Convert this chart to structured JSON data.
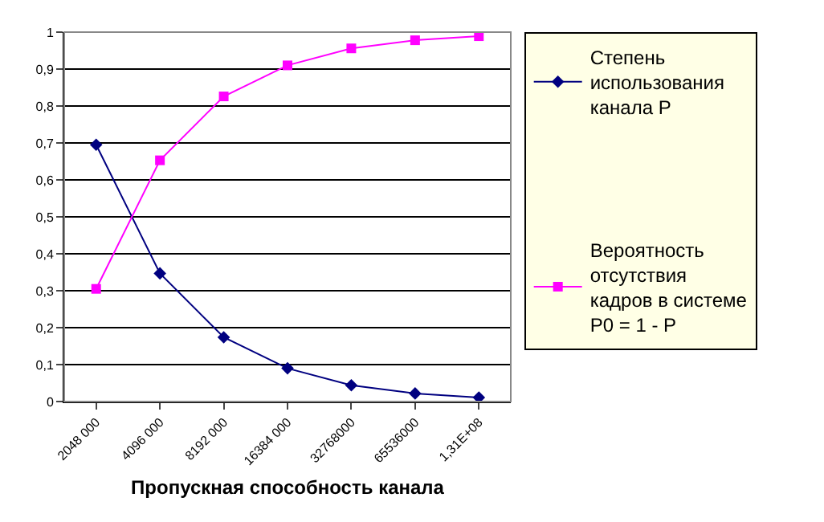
{
  "chart_data": {
    "type": "line",
    "xlabel": "Пропускная способность канала",
    "categories": [
      "2048 000",
      "4096 000",
      "8192 000",
      "16384 000",
      "32768000",
      "65536000",
      "1,31E+08"
    ],
    "series": [
      {
        "name": "Степень\nиспользования\nканала P",
        "color": "#000080",
        "marker": "diamond",
        "values": [
          0.695,
          0.347,
          0.174,
          0.09,
          0.044,
          0.022,
          0.011
        ]
      },
      {
        "name": "Вероятность\nотсутствия\nкадров в системе\nP0 = 1 - P",
        "color": "#ff00ff",
        "marker": "square",
        "values": [
          0.305,
          0.653,
          0.826,
          0.91,
          0.956,
          0.978,
          0.989
        ]
      }
    ],
    "ylim": [
      0,
      1
    ],
    "yticks": [
      {
        "value": 0,
        "label": "0"
      },
      {
        "value": 0.1,
        "label": "0,1"
      },
      {
        "value": 0.2,
        "label": "0,2"
      },
      {
        "value": 0.3,
        "label": "0,3"
      },
      {
        "value": 0.4,
        "label": "0,4"
      },
      {
        "value": 0.5,
        "label": "0,5"
      },
      {
        "value": 0.6,
        "label": "0,6"
      },
      {
        "value": 0.7,
        "label": "0,7"
      },
      {
        "value": 0.8,
        "label": "0,8"
      },
      {
        "value": 0.9,
        "label": "0,9"
      },
      {
        "value": 1,
        "label": "1"
      }
    ],
    "grid": "y",
    "legend": "right",
    "line_style": "solid"
  }
}
